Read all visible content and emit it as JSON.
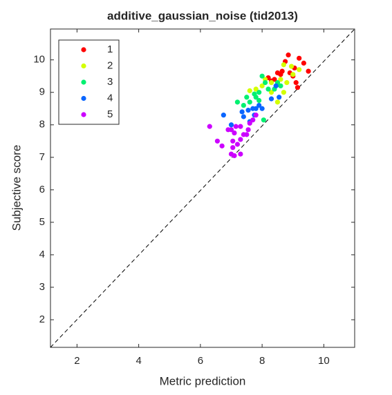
{
  "chart_data": {
    "type": "scatter",
    "title": "additive_gaussian_noise (tid2013)",
    "x_label": "Metric prediction",
    "y_label": "Subjective score",
    "xlim": [
      1.14,
      11.0
    ],
    "ylim": [
      1.15,
      10.95
    ],
    "xticks": [
      2,
      4,
      6,
      8,
      10
    ],
    "yticks": [
      2,
      3,
      4,
      5,
      6,
      7,
      8,
      9,
      10
    ],
    "legend": "upper left",
    "series": [
      {
        "name": "1",
        "color": "#ff0000",
        "x": [
          8.85,
          8.75,
          9.2,
          9.35,
          9.5,
          8.65,
          8.9,
          8.5,
          8.6,
          9.0,
          9.1,
          8.2,
          8.4,
          9.05,
          8.3,
          9.15
        ],
        "values": [
          10.15,
          9.95,
          10.05,
          9.9,
          9.65,
          9.65,
          9.6,
          9.6,
          9.55,
          9.5,
          9.3,
          9.45,
          9.4,
          9.75,
          9.35,
          9.15
        ]
      },
      {
        "name": "2",
        "color": "#d4ff00",
        "x": [
          8.7,
          8.95,
          9.2,
          8.6,
          8.8,
          8.3,
          8.0,
          8.7,
          7.8,
          7.6,
          8.5,
          8.3,
          9.0,
          8.1
        ],
        "values": [
          9.85,
          9.8,
          9.7,
          9.4,
          9.3,
          9.3,
          9.2,
          9.0,
          9.1,
          9.05,
          8.7,
          9.0,
          9.55,
          9.4
        ]
      },
      {
        "name": "3",
        "color": "#00f070",
        "x": [
          8.0,
          8.1,
          7.9,
          7.75,
          7.8,
          7.5,
          7.2,
          7.4,
          7.6,
          8.2,
          8.4,
          8.6,
          8.05,
          7.9,
          8.5
        ],
        "values": [
          9.5,
          9.3,
          9.0,
          8.95,
          8.85,
          8.85,
          8.7,
          8.6,
          8.7,
          9.1,
          9.1,
          9.2,
          8.15,
          8.75,
          9.3
        ]
      },
      {
        "name": "4",
        "color": "#0a66ff",
        "x": [
          6.75,
          7.0,
          7.35,
          7.55,
          7.7,
          7.8,
          7.9,
          7.4,
          7.6,
          8.3,
          8.45,
          8.55,
          7.75,
          8.0
        ],
        "values": [
          8.3,
          8.0,
          8.4,
          8.45,
          8.5,
          8.5,
          8.6,
          8.25,
          8.1,
          8.8,
          9.2,
          8.85,
          8.3,
          8.5
        ]
      },
      {
        "name": "5",
        "color": "#cc00ff",
        "x": [
          6.3,
          6.55,
          6.7,
          6.9,
          7.0,
          7.1,
          7.15,
          7.3,
          7.05,
          7.2,
          7.3,
          7.4,
          7.5,
          7.0,
          7.1,
          7.3,
          7.7,
          7.8,
          7.55,
          7.6,
          7.05
        ],
        "values": [
          7.95,
          7.5,
          7.35,
          7.85,
          7.85,
          7.75,
          7.95,
          7.95,
          7.5,
          7.4,
          7.55,
          7.7,
          7.7,
          7.1,
          7.05,
          7.1,
          8.15,
          8.3,
          7.85,
          8.05,
          7.3
        ]
      }
    ]
  }
}
